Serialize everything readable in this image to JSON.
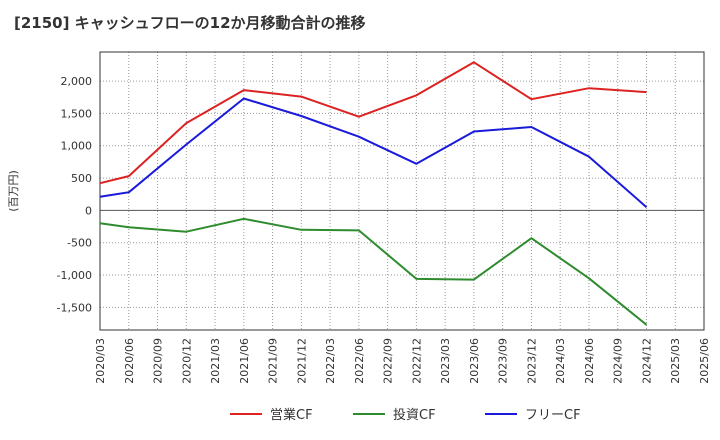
{
  "chart_data": {
    "type": "line",
    "title": "[2150]  キャッシュフローの12か月移動合計の推移",
    "ylabel": "(百万円)",
    "xlabel": "",
    "ylim": [
      -1850,
      2450
    ],
    "yticks": [
      2000,
      1500,
      1000,
      500,
      0,
      -500,
      -1000,
      -1500
    ],
    "ytick_labels": [
      "2,000",
      "1,500",
      "1,000",
      "500",
      "0",
      "-500",
      "-1,000",
      "-1,500"
    ],
    "categories": [
      "2020/03",
      "2020/06",
      "2020/09",
      "2020/12",
      "2021/03",
      "2021/06",
      "2021/09",
      "2021/12",
      "2022/03",
      "2022/06",
      "2022/09",
      "2022/12",
      "2023/03",
      "2023/06",
      "2023/09",
      "2023/12",
      "2024/03",
      "2024/06",
      "2024/09",
      "2024/12",
      "2025/03",
      "2025/06"
    ],
    "grid": true,
    "legend_position": "bottom",
    "series": [
      {
        "name": "営業CF",
        "color": "#dd2222",
        "points": [
          {
            "x": 0,
            "y": 420
          },
          {
            "x": 1,
            "y": 530
          },
          {
            "x": 3,
            "y": 1350
          },
          {
            "x": 5,
            "y": 1860
          },
          {
            "x": 7,
            "y": 1760
          },
          {
            "x": 9,
            "y": 1450
          },
          {
            "x": 11,
            "y": 1780
          },
          {
            "x": 13,
            "y": 2290
          },
          {
            "x": 15,
            "y": 1720
          },
          {
            "x": 17,
            "y": 1890
          },
          {
            "x": 19,
            "y": 1830
          }
        ]
      },
      {
        "name": "投資CF",
        "color": "#2e8b2e",
        "points": [
          {
            "x": 0,
            "y": -200
          },
          {
            "x": 1,
            "y": -260
          },
          {
            "x": 3,
            "y": -330
          },
          {
            "x": 5,
            "y": -130
          },
          {
            "x": 7,
            "y": -300
          },
          {
            "x": 9,
            "y": -310
          },
          {
            "x": 11,
            "y": -1060
          },
          {
            "x": 13,
            "y": -1070
          },
          {
            "x": 15,
            "y": -430
          },
          {
            "x": 17,
            "y": -1050
          },
          {
            "x": 19,
            "y": -1770
          }
        ]
      },
      {
        "name": "フリーCF",
        "color": "#1a1adb",
        "points": [
          {
            "x": 0,
            "y": 210
          },
          {
            "x": 1,
            "y": 280
          },
          {
            "x": 3,
            "y": 1020
          },
          {
            "x": 5,
            "y": 1730
          },
          {
            "x": 7,
            "y": 1460
          },
          {
            "x": 9,
            "y": 1140
          },
          {
            "x": 11,
            "y": 720
          },
          {
            "x": 13,
            "y": 1220
          },
          {
            "x": 15,
            "y": 1290
          },
          {
            "x": 17,
            "y": 830
          },
          {
            "x": 19,
            "y": 50
          }
        ]
      }
    ]
  }
}
